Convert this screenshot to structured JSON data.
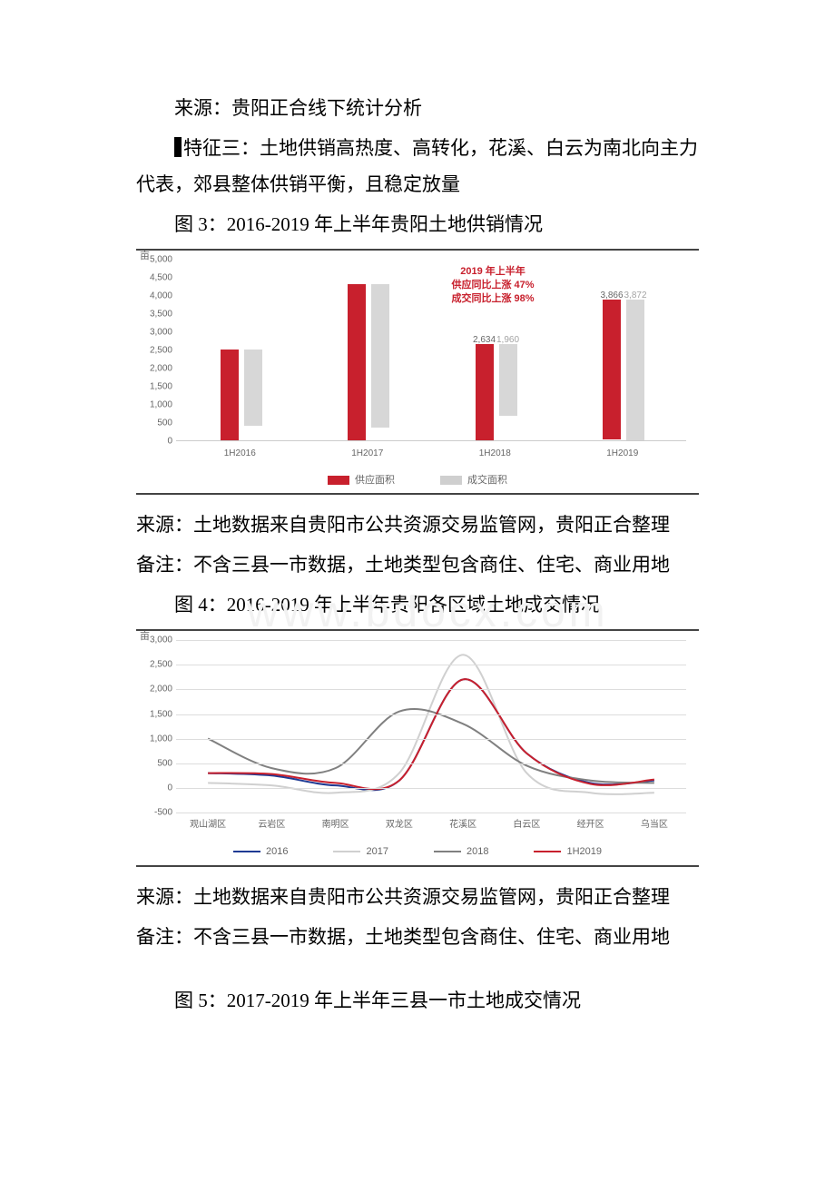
{
  "source_top": "来源：贵阳正合线下统计分析",
  "feature3_label": "特征三：",
  "feature3_text": "土地供销高热度、高转化，花溪、白云为南北向主力代表，郊县整体供销平衡，且稳定放量",
  "fig3_title": "图 3：2016-2019 年上半年贵阳土地供销情况",
  "fig4_title": "图 4：2016-2019 年上半年贵阳各区域土地成交情况",
  "fig5_title": "图 5：2017-2019 年上半年三县一市土地成交情况",
  "source_land": "来源：土地数据来自贵阳市公共资源交易监管网，贵阳正合整理",
  "note_land": "备注：不含三县一市数据，土地类型包含商住、住宅、商业用地",
  "bar_chart": {
    "type": "bar",
    "y_unit": "亩",
    "ymax": 5000,
    "ytick_step": 500,
    "yticks": [
      "0",
      "500",
      "1,000",
      "1,500",
      "2,000",
      "2,500",
      "3,000",
      "3,500",
      "4,000",
      "4,500",
      "5,000"
    ],
    "categories": [
      "1H2016",
      "1H2017",
      "1H2018",
      "1H2019"
    ],
    "series": [
      {
        "name": "供应面积",
        "color": "#c8202d",
        "values": [
          2500,
          4300,
          2634,
          3866
        ],
        "show_labels": [
          false,
          false,
          true,
          true
        ]
      },
      {
        "name": "成交面积",
        "color": "#bdbdbd",
        "values": [
          2100,
          3950,
          1960,
          3872
        ],
        "show_labels": [
          false,
          false,
          true,
          true
        ]
      }
    ],
    "annotation": {
      "line1": "2019 年上半年",
      "line2": "供应同比上涨 47%",
      "line3": "成交同比上涨 98%"
    }
  },
  "line_chart": {
    "type": "line",
    "y_unit": "亩",
    "ymin": -500,
    "ymax": 3000,
    "yticks": [
      "-500",
      "0",
      "500",
      "1,000",
      "1,500",
      "2,000",
      "2,500",
      "3,000"
    ],
    "categories": [
      "观山湖区",
      "云岩区",
      "南明区",
      "双龙区",
      "花溪区",
      "白云区",
      "经开区",
      "乌当区"
    ],
    "series": [
      {
        "name": "2016",
        "color": "#1f3a93",
        "values": [
          300,
          250,
          50,
          150,
          2200,
          700,
          100,
          150
        ]
      },
      {
        "name": "2017",
        "color": "#d0d0d0",
        "values": [
          100,
          50,
          -100,
          300,
          2700,
          300,
          -100,
          -100
        ]
      },
      {
        "name": "2018",
        "color": "#808080",
        "values": [
          1000,
          400,
          400,
          1550,
          1300,
          450,
          150,
          100
        ]
      },
      {
        "name": "1H2019",
        "color": "#c8202d",
        "values": [
          300,
          280,
          100,
          150,
          2200,
          700,
          80,
          170
        ]
      }
    ]
  },
  "legend_bar": {
    "s1": "供应面积",
    "s2": "成交面积"
  },
  "legend_line": {
    "s1": "2016",
    "s2": "2017",
    "s3": "2018",
    "s4": "1H2019"
  },
  "watermark": "www.bdocx.com"
}
